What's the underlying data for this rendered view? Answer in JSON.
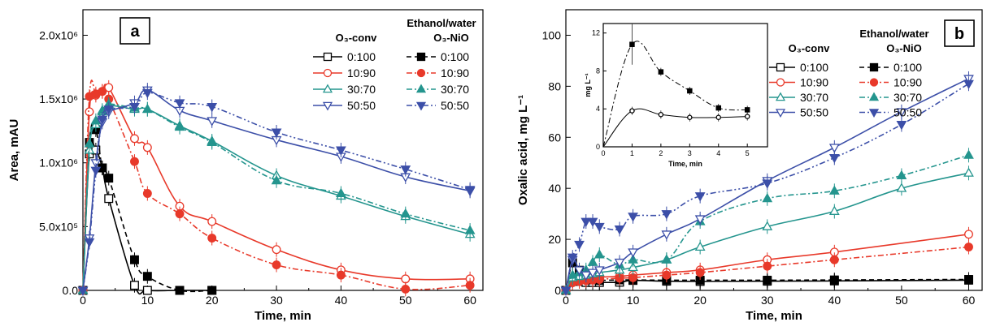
{
  "chart_data": [
    {
      "panel": "a",
      "type": "line",
      "xlabel": "Time, min",
      "ylabel": "Area, mAU",
      "xlim": [
        0,
        62
      ],
      "ylim": [
        0,
        2200000
      ],
      "xticks": [
        0,
        10,
        20,
        30,
        40,
        50,
        60
      ],
      "yticks": [
        "0.0",
        "5.0x10⁵",
        "1.0x10⁶",
        "1.5x10⁶",
        "2.0x10⁶"
      ],
      "legend_title": "Ethanol/water",
      "legend_groups": [
        "O₃-conv",
        "O₃-NiO"
      ],
      "legend_placement": "top-right",
      "series": [
        {
          "name": "0:100",
          "group": "O3-conv",
          "color": "#000000",
          "marker": "square-open",
          "dash": "solid",
          "x": [
            0,
            1,
            2,
            3,
            4,
            8,
            10,
            15,
            20
          ],
          "y": [
            0,
            1070000,
            1100000,
            960000,
            720000,
            40000,
            0,
            0,
            0
          ]
        },
        {
          "name": "0:100",
          "group": "O3-NiO",
          "color": "#000000",
          "marker": "square-filled",
          "dash": "dash",
          "x": [
            0,
            1,
            2,
            3,
            4,
            8,
            10,
            15,
            20
          ],
          "y": [
            0,
            1160000,
            1260000,
            960000,
            880000,
            240000,
            110000,
            0,
            0
          ]
        },
        {
          "name": "10:90",
          "group": "O3-conv",
          "color": "#e8392a",
          "marker": "circle-open",
          "dash": "solid",
          "x": [
            0,
            1,
            2,
            3,
            4,
            8,
            10,
            15,
            20,
            30,
            40,
            50,
            60
          ],
          "y": [
            0,
            1400000,
            1530000,
            1560000,
            1590000,
            1190000,
            1120000,
            660000,
            540000,
            320000,
            160000,
            90000,
            90000
          ]
        },
        {
          "name": "10:90",
          "group": "O3-NiO",
          "color": "#e8392a",
          "marker": "circle-filled",
          "dash": "dashdot",
          "x": [
            0,
            1,
            2,
            3,
            4,
            8,
            10,
            15,
            20,
            30,
            40,
            50,
            60
          ],
          "y": [
            0,
            1520000,
            1540000,
            1560000,
            1500000,
            1010000,
            760000,
            600000,
            410000,
            200000,
            120000,
            10000,
            40000
          ]
        },
        {
          "name": "30:70",
          "group": "O3-conv",
          "color": "#24958e",
          "marker": "triangle-up-open",
          "dash": "solid",
          "x": [
            0,
            1,
            2,
            3,
            4,
            8,
            10,
            15,
            20,
            30,
            40,
            50,
            60
          ],
          "y": [
            0,
            1100000,
            1300000,
            1400000,
            1450000,
            1420000,
            1420000,
            1290000,
            1170000,
            900000,
            740000,
            580000,
            440000
          ]
        },
        {
          "name": "30:70",
          "group": "O3-NiO",
          "color": "#24958e",
          "marker": "triangle-up-filled",
          "dash": "dashdot",
          "x": [
            0,
            1,
            2,
            3,
            4,
            8,
            10,
            15,
            20,
            30,
            40,
            50,
            60
          ],
          "y": [
            0,
            1150000,
            1330000,
            1410000,
            1460000,
            1430000,
            1420000,
            1280000,
            1160000,
            860000,
            760000,
            600000,
            470000
          ]
        },
        {
          "name": "50:50",
          "group": "O3-conv",
          "color": "#3c4fa8",
          "marker": "triangle-down-open",
          "dash": "solid",
          "x": [
            0,
            1,
            2,
            3,
            4,
            8,
            10,
            15,
            20,
            30,
            40,
            50,
            60
          ],
          "y": [
            0,
            410000,
            1000000,
            1320000,
            1400000,
            1470000,
            1570000,
            1410000,
            1330000,
            1180000,
            1050000,
            890000,
            780000
          ]
        },
        {
          "name": "50:50",
          "group": "O3-NiO",
          "color": "#3c4fa8",
          "marker": "triangle-down-filled",
          "dash": "dashdotdot",
          "x": [
            0,
            1,
            2,
            3,
            4,
            8,
            10,
            15,
            20,
            30,
            40,
            50,
            60
          ],
          "y": [
            0,
            380000,
            940000,
            1340000,
            1420000,
            1440000,
            1550000,
            1470000,
            1440000,
            1240000,
            1100000,
            950000,
            790000
          ]
        }
      ]
    },
    {
      "panel": "b",
      "type": "line",
      "xlabel": "Time, min",
      "ylabel": "Oxalic acid, mg L⁻¹",
      "xlim": [
        0,
        62
      ],
      "ylim": [
        0,
        110
      ],
      "xticks": [
        0,
        10,
        20,
        30,
        40,
        50,
        60
      ],
      "yticks": [
        0,
        20,
        40,
        60,
        80,
        100
      ],
      "legend_title": "Ethanol/water",
      "legend_groups": [
        "O₃-conv",
        "O₃-NiO"
      ],
      "legend_placement": "top-right",
      "series": [
        {
          "name": "0:100",
          "group": "O3-conv",
          "color": "#000000",
          "marker": "square-open",
          "dash": "solid",
          "x": [
            0,
            1,
            2,
            3,
            4,
            5,
            8,
            10,
            15,
            20,
            30,
            40,
            60
          ],
          "y": [
            0,
            3.8,
            3.5,
            3.1,
            3.1,
            3.1,
            3.2,
            3.9,
            3.6,
            3.5,
            3.6,
            3.7,
            4.0
          ]
        },
        {
          "name": "0:100",
          "group": "O3-NiO",
          "color": "#000000",
          "marker": "square-filled",
          "dash": "dash",
          "x": [
            0,
            1,
            2,
            3,
            4,
            5,
            8,
            10,
            15,
            20,
            30,
            40,
            60
          ],
          "y": [
            0,
            10.8,
            7.9,
            5.9,
            4.1,
            3.9,
            4.1,
            4.1,
            4.0,
            4.0,
            4.0,
            4.1,
            4.3
          ]
        },
        {
          "name": "10:90",
          "group": "O3-conv",
          "color": "#e8392a",
          "marker": "circle-open",
          "dash": "solid",
          "x": [
            0,
            1,
            2,
            3,
            4,
            5,
            8,
            10,
            15,
            20,
            30,
            40,
            60
          ],
          "y": [
            0,
            4,
            4.5,
            4.8,
            5,
            5.2,
            5.5,
            6,
            7,
            8,
            12,
            15,
            22
          ]
        },
        {
          "name": "10:90",
          "group": "O3-NiO",
          "color": "#e8392a",
          "marker": "circle-filled",
          "dash": "dashdot",
          "x": [
            0,
            1,
            2,
            3,
            4,
            5,
            8,
            10,
            15,
            20,
            30,
            40,
            60
          ],
          "y": [
            0,
            3,
            3.5,
            3.8,
            4,
            4.3,
            4.8,
            5,
            6,
            7,
            9.5,
            12,
            17
          ]
        },
        {
          "name": "30:70",
          "group": "O3-conv",
          "color": "#24958e",
          "marker": "triangle-up-open",
          "dash": "solid",
          "x": [
            0,
            1,
            2,
            3,
            4,
            5,
            8,
            10,
            15,
            20,
            30,
            40,
            50,
            60
          ],
          "y": [
            0,
            5,
            5.5,
            6,
            6.5,
            7,
            8,
            9,
            12,
            17,
            25,
            31,
            40,
            46
          ]
        },
        {
          "name": "30:70",
          "group": "O3-NiO",
          "color": "#24958e",
          "marker": "triangle-up-filled",
          "dash": "dashdot",
          "x": [
            0,
            1,
            2,
            3,
            4,
            5,
            8,
            10,
            15,
            20,
            30,
            40,
            50,
            60
          ],
          "y": [
            0,
            6,
            7,
            8,
            11,
            14,
            10,
            12,
            12,
            27,
            36,
            39,
            45,
            53
          ]
        },
        {
          "name": "50:50",
          "group": "O3-conv",
          "color": "#3c4fa8",
          "marker": "triangle-down-open",
          "dash": "solid",
          "x": [
            0,
            1,
            2,
            3,
            4,
            5,
            8,
            10,
            15,
            20,
            30,
            40,
            50,
            60
          ],
          "y": [
            0,
            12,
            8,
            6,
            7,
            8,
            11,
            15,
            22,
            28,
            43,
            56,
            70,
            83
          ]
        },
        {
          "name": "50:50",
          "group": "O3-NiO",
          "color": "#3c4fa8",
          "marker": "triangle-down-filled",
          "dash": "dashdotdot",
          "x": [
            0,
            1,
            2,
            3,
            4,
            5,
            8,
            10,
            15,
            20,
            30,
            40,
            50,
            60
          ],
          "y": [
            0,
            13,
            18,
            27,
            27,
            25,
            24,
            29,
            30,
            37,
            42,
            52,
            65,
            81
          ]
        }
      ],
      "inset": {
        "type": "line",
        "xlabel": "Time, min",
        "ylabel": "mg L⁻¹",
        "xlim": [
          0,
          5.7
        ],
        "ylim": [
          0,
          13
        ],
        "xticks": [
          0,
          1,
          2,
          3,
          4,
          5
        ],
        "yticks": [
          0,
          4,
          8,
          12
        ],
        "series": [
          {
            "name": "0:100",
            "group": "O3-conv",
            "color": "#000000",
            "marker": "circle-open",
            "dash": "solid",
            "x": [
              0,
              1,
              2,
              3,
              4,
              5
            ],
            "y": [
              0,
              3.8,
              3.4,
              3.1,
              3.1,
              3.2
            ]
          },
          {
            "name": "0:100",
            "group": "O3-NiO",
            "color": "#000000",
            "marker": "square-filled",
            "dash": "dashdot",
            "x": [
              0,
              1,
              2,
              3,
              4,
              5
            ],
            "y": [
              0,
              10.8,
              7.9,
              5.9,
              4.1,
              3.9
            ]
          }
        ]
      }
    }
  ]
}
